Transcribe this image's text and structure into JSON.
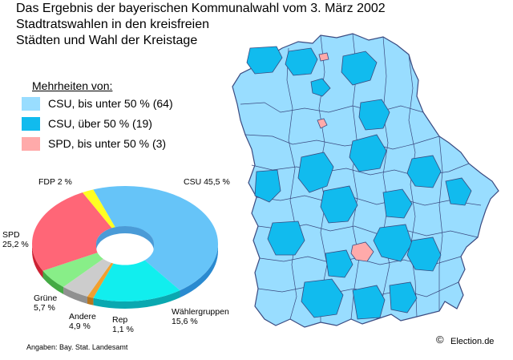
{
  "title": {
    "line1": "Das Ergebnis der bayerischen Kommunalwahl  vom 3. März 2002",
    "line2": "Stadtratswahlen in den kreisfreien",
    "line3": "Städten und Wahl der Kreistage"
  },
  "legend": {
    "heading": "Mehrheiten von:",
    "items": [
      {
        "label": "CSU, bis unter 50 % (64)",
        "color": "#99ddff"
      },
      {
        "label": "CSU, über 50 % (19)",
        "color": "#11bbee"
      },
      {
        "label": "SPD, bis unter 50 % (3)",
        "color": "#ffaaaa"
      }
    ]
  },
  "map": {
    "region": "Bayern",
    "border_color": "#3a4a80",
    "base_color": "#99ddff"
  },
  "chart_data": {
    "type": "pie",
    "style": "3d-donut",
    "slices": [
      {
        "name": "CSU",
        "value": 45.5,
        "color": "#66c4f8",
        "side": "#2a8ad0",
        "label_top": "CSU 45,5 %",
        "label_bottom": ""
      },
      {
        "name": "Wählergruppen",
        "value": 15.6,
        "color": "#11eeee",
        "side": "#0aa8b0",
        "label_top": "Wählergruppen",
        "label_bottom": "15,6 %"
      },
      {
        "name": "Rep",
        "value": 1.1,
        "color": "#f0a030",
        "side": "#b8761e",
        "label_top": "Rep",
        "label_bottom": "1,1 %"
      },
      {
        "name": "Andere",
        "value": 4.9,
        "color": "#cccccc",
        "side": "#909090",
        "label_top": "Andere",
        "label_bottom": "4,9 %"
      },
      {
        "name": "Grüne",
        "value": 5.7,
        "color": "#88ee88",
        "side": "#44aa44",
        "label_top": "Grüne",
        "label_bottom": "5,7 %"
      },
      {
        "name": "SPD",
        "value": 25.2,
        "color": "#ff6677",
        "side": "#cc2233",
        "label_top": "SPD",
        "label_bottom": "25,2 %"
      },
      {
        "name": "FDP",
        "value": 2.0,
        "color": "#ffff22",
        "side": "#c8c800",
        "label_top": "FDP 2 %",
        "label_bottom": ""
      }
    ]
  },
  "footer": {
    "source": "Angaben: Bay. Stat. Landesamt",
    "copyright": "©",
    "credit": "Election.de"
  }
}
